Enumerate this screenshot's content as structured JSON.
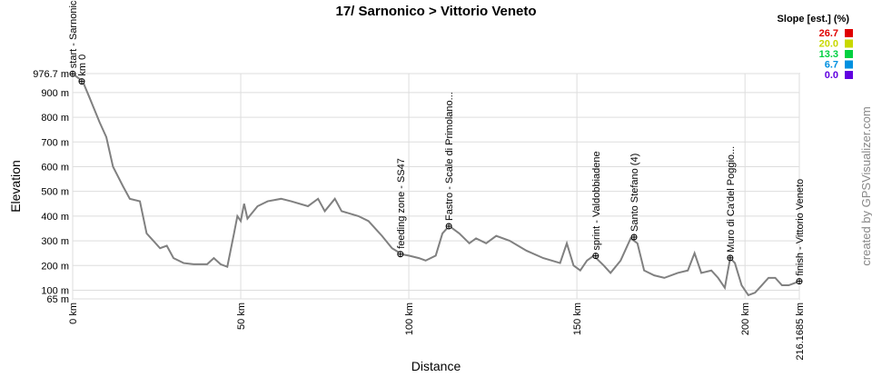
{
  "chart_data": {
    "type": "line",
    "title": "17/ Sarnonico > Vittorio Veneto",
    "x_label": "Distance",
    "y_label": "Elevation",
    "watermark": "created by GPSVisualizer.com",
    "xlim": [
      0,
      216.1685
    ],
    "ylim": [
      65,
      976.7
    ],
    "xticks": [
      {
        "value": 0,
        "label": "0 km"
      },
      {
        "value": 50,
        "label": "50 km"
      },
      {
        "value": 100,
        "label": "100 km"
      },
      {
        "value": 150,
        "label": "150 km"
      },
      {
        "value": 200,
        "label": "200 km"
      },
      {
        "value": 216.1685,
        "label": "216.1685 km"
      }
    ],
    "yticks": [
      {
        "value": 65,
        "label": "65 m"
      },
      {
        "value": 100,
        "label": "100 m"
      },
      {
        "value": 200,
        "label": "200 m"
      },
      {
        "value": 300,
        "label": "300 m"
      },
      {
        "value": 400,
        "label": "400 m"
      },
      {
        "value": 500,
        "label": "500 m"
      },
      {
        "value": 600,
        "label": "600 m"
      },
      {
        "value": 700,
        "label": "700 m"
      },
      {
        "value": 800,
        "label": "800 m"
      },
      {
        "value": 900,
        "label": "900 m"
      },
      {
        "value": 976.7,
        "label": "976.7 m"
      }
    ],
    "grid": true,
    "line_color": "#808080",
    "x": [
      0,
      3,
      5,
      8,
      10,
      12,
      15,
      17,
      20,
      22,
      24,
      26,
      28,
      30,
      33,
      36,
      40,
      42,
      44,
      46,
      48,
      49,
      50,
      51,
      52,
      55,
      58,
      62,
      65,
      70,
      73,
      75,
      78,
      80,
      85,
      88,
      92,
      95,
      98,
      100,
      103,
      105,
      108,
      110,
      112,
      115,
      118,
      120,
      123,
      126,
      130,
      135,
      140,
      145,
      147,
      149,
      151,
      153,
      155,
      158,
      160,
      163,
      166,
      168,
      170,
      173,
      176,
      180,
      183,
      185,
      187,
      190,
      192,
      194,
      195.6,
      197,
      199,
      201,
      203,
      205,
      207,
      209,
      211,
      213,
      216.1685
    ],
    "series": [
      {
        "name": "Elevation",
        "values": [
          976,
          945,
          880,
          780,
          720,
          600,
          520,
          470,
          460,
          330,
          300,
          270,
          280,
          230,
          210,
          205,
          205,
          230,
          205,
          195,
          330,
          400,
          380,
          450,
          390,
          440,
          460,
          470,
          460,
          440,
          470,
          420,
          470,
          420,
          400,
          380,
          320,
          270,
          245,
          240,
          230,
          220,
          240,
          330,
          360,
          330,
          290,
          310,
          290,
          320,
          300,
          260,
          230,
          210,
          290,
          200,
          180,
          220,
          240,
          200,
          170,
          220,
          310,
          290,
          180,
          160,
          150,
          170,
          180,
          250,
          170,
          180,
          150,
          110,
          230,
          210,
          120,
          80,
          90,
          120,
          150,
          150,
          120,
          120,
          136
        ]
      }
    ],
    "annotations": [
      {
        "text": "start - Sarnonico",
        "x": 0,
        "y": 976
      },
      {
        "text": "km 0",
        "x": 2.7,
        "y": 945
      },
      {
        "text": "feeding zone - SS47",
        "x": 97.5,
        "y": 246
      },
      {
        "text": "Fastro - Scale di Primolano...",
        "x": 111.9,
        "y": 359
      },
      {
        "text": "sprint - Valdobbiadene",
        "x": 155.6,
        "y": 239
      },
      {
        "text": "Santo Stefano (4)",
        "x": 167,
        "y": 315
      },
      {
        "text": "Muro di Ca'del Poggio...",
        "x": 195.6,
        "y": 231
      },
      {
        "text": "finish - Vittorio Veneto",
        "x": 216.1685,
        "y": 136
      }
    ],
    "legend": {
      "title": "Slope [est.] (%)",
      "position": "upper right",
      "items": [
        {
          "value": 26.7,
          "label": "26.7",
          "color": "#e00000"
        },
        {
          "value": 20,
          "label": "20.0",
          "color": "#c8d800"
        },
        {
          "value": 13.3,
          "label": "13.3",
          "color": "#00d040"
        },
        {
          "value": 6.7,
          "label": "6.7",
          "color": "#0090e0"
        },
        {
          "value": 0,
          "label": "0.0",
          "color": "#6000e0"
        }
      ]
    }
  }
}
